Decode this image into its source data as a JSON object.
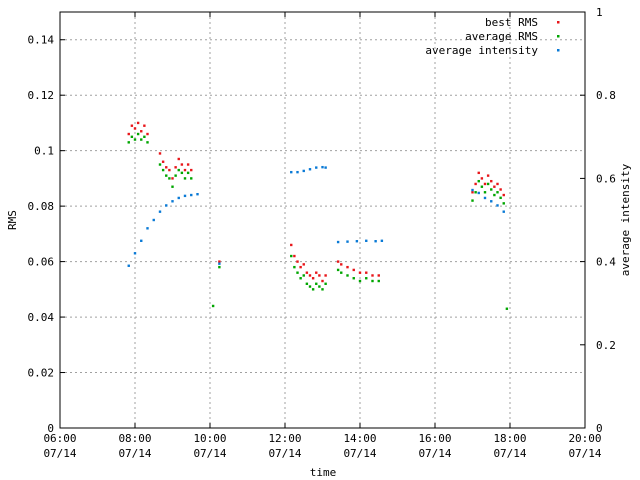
{
  "chart_data": {
    "type": "scatter",
    "xlabel": "time",
    "ylabel": "RMS",
    "y2label": "average intensity",
    "xlim": [
      "06:00",
      "20:00"
    ],
    "ylim": [
      0,
      0.15
    ],
    "y2lim": [
      0,
      1
    ],
    "grid": true,
    "legend_position": "top-right",
    "x_ticks": [
      {
        "time": "06:00",
        "date": "07/14"
      },
      {
        "time": "08:00",
        "date": "07/14"
      },
      {
        "time": "10:00",
        "date": "07/14"
      },
      {
        "time": "12:00",
        "date": "07/14"
      },
      {
        "time": "14:00",
        "date": "07/14"
      },
      {
        "time": "16:00",
        "date": "07/14"
      },
      {
        "time": "18:00",
        "date": "07/14"
      },
      {
        "time": "20:00",
        "date": "07/14"
      }
    ],
    "y_ticks": [
      "0",
      "0.02",
      "0.04",
      "0.06",
      "0.08",
      "0.1",
      "0.12",
      "0.14"
    ],
    "y2_ticks": [
      "0",
      "0.2",
      "0.4",
      "0.6",
      "0.8",
      "1"
    ],
    "series": [
      {
        "name": "best RMS",
        "color": "#e8161a",
        "axis": "y",
        "points": [
          [
            "07:50",
            0.106
          ],
          [
            "07:55",
            0.109
          ],
          [
            "08:00",
            0.108
          ],
          [
            "08:05",
            0.11
          ],
          [
            "08:10",
            0.107
          ],
          [
            "08:15",
            0.109
          ],
          [
            "08:20",
            0.106
          ],
          [
            "08:40",
            0.099
          ],
          [
            "08:45",
            0.096
          ],
          [
            "08:50",
            0.094
          ],
          [
            "08:55",
            0.093
          ],
          [
            "09:00",
            0.09
          ],
          [
            "09:05",
            0.094
          ],
          [
            "09:10",
            0.097
          ],
          [
            "09:15",
            0.095
          ],
          [
            "09:20",
            0.093
          ],
          [
            "09:25",
            0.095
          ],
          [
            "09:30",
            0.093
          ],
          [
            "10:15",
            0.06
          ],
          [
            "12:10",
            0.066
          ],
          [
            "12:15",
            0.062
          ],
          [
            "12:20",
            0.06
          ],
          [
            "12:25",
            0.058
          ],
          [
            "12:30",
            0.059
          ],
          [
            "12:35",
            0.056
          ],
          [
            "12:40",
            0.055
          ],
          [
            "12:45",
            0.054
          ],
          [
            "12:50",
            0.056
          ],
          [
            "12:55",
            0.055
          ],
          [
            "13:00",
            0.053
          ],
          [
            "13:05",
            0.055
          ],
          [
            "13:25",
            0.06
          ],
          [
            "13:30",
            0.059
          ],
          [
            "13:40",
            0.058
          ],
          [
            "13:50",
            0.057
          ],
          [
            "14:00",
            0.056
          ],
          [
            "14:10",
            0.056
          ],
          [
            "14:20",
            0.055
          ],
          [
            "14:30",
            0.055
          ],
          [
            "17:00",
            0.085
          ],
          [
            "17:05",
            0.088
          ],
          [
            "17:10",
            0.092
          ],
          [
            "17:15",
            0.09
          ],
          [
            "17:20",
            0.088
          ],
          [
            "17:25",
            0.091
          ],
          [
            "17:30",
            0.089
          ],
          [
            "17:35",
            0.087
          ],
          [
            "17:40",
            0.088
          ],
          [
            "17:45",
            0.086
          ],
          [
            "17:50",
            0.084
          ]
        ]
      },
      {
        "name": "average RMS",
        "color": "#00a600",
        "axis": "y",
        "points": [
          [
            "07:50",
            0.103
          ],
          [
            "07:55",
            0.105
          ],
          [
            "08:00",
            0.104
          ],
          [
            "08:05",
            0.106
          ],
          [
            "08:10",
            0.104
          ],
          [
            "08:15",
            0.105
          ],
          [
            "08:20",
            0.103
          ],
          [
            "08:40",
            0.095
          ],
          [
            "08:45",
            0.093
          ],
          [
            "08:50",
            0.091
          ],
          [
            "08:55",
            0.09
          ],
          [
            "09:00",
            0.087
          ],
          [
            "09:05",
            0.091
          ],
          [
            "09:10",
            0.093
          ],
          [
            "09:15",
            0.092
          ],
          [
            "09:20",
            0.09
          ],
          [
            "09:25",
            0.092
          ],
          [
            "09:30",
            0.09
          ],
          [
            "10:15",
            0.058
          ],
          [
            "10:05",
            0.044
          ],
          [
            "12:10",
            0.062
          ],
          [
            "12:15",
            0.058
          ],
          [
            "12:20",
            0.056
          ],
          [
            "12:25",
            0.054
          ],
          [
            "12:30",
            0.055
          ],
          [
            "12:35",
            0.052
          ],
          [
            "12:40",
            0.051
          ],
          [
            "12:45",
            0.05
          ],
          [
            "12:50",
            0.052
          ],
          [
            "12:55",
            0.051
          ],
          [
            "13:00",
            0.05
          ],
          [
            "13:05",
            0.052
          ],
          [
            "13:25",
            0.057
          ],
          [
            "13:30",
            0.056
          ],
          [
            "13:40",
            0.055
          ],
          [
            "13:50",
            0.054
          ],
          [
            "14:00",
            0.053
          ],
          [
            "14:10",
            0.054
          ],
          [
            "14:20",
            0.053
          ],
          [
            "14:30",
            0.053
          ],
          [
            "17:00",
            0.082
          ],
          [
            "17:05",
            0.085
          ],
          [
            "17:10",
            0.089
          ],
          [
            "17:15",
            0.087
          ],
          [
            "17:20",
            0.085
          ],
          [
            "17:25",
            0.088
          ],
          [
            "17:30",
            0.086
          ],
          [
            "17:35",
            0.084
          ],
          [
            "17:40",
            0.085
          ],
          [
            "17:45",
            0.083
          ],
          [
            "17:50",
            0.081
          ],
          [
            "17:55",
            0.043
          ]
        ]
      },
      {
        "name": "average intensity",
        "color": "#0a7ad6",
        "axis": "y2",
        "points": [
          [
            "07:50",
            0.39
          ],
          [
            "08:00",
            0.42
          ],
          [
            "08:10",
            0.45
          ],
          [
            "08:20",
            0.48
          ],
          [
            "08:30",
            0.5
          ],
          [
            "08:40",
            0.52
          ],
          [
            "08:50",
            0.535
          ],
          [
            "09:00",
            0.545
          ],
          [
            "09:10",
            0.553
          ],
          [
            "09:20",
            0.558
          ],
          [
            "09:30",
            0.56
          ],
          [
            "09:40",
            0.562
          ],
          [
            "10:15",
            0.395
          ],
          [
            "12:10",
            0.615
          ],
          [
            "12:20",
            0.615
          ],
          [
            "12:30",
            0.618
          ],
          [
            "12:40",
            0.622
          ],
          [
            "12:50",
            0.626
          ],
          [
            "13:00",
            0.627
          ],
          [
            "13:05",
            0.626
          ],
          [
            "13:25",
            0.447
          ],
          [
            "13:40",
            0.448
          ],
          [
            "13:55",
            0.449
          ],
          [
            "14:10",
            0.45
          ],
          [
            "14:25",
            0.449
          ],
          [
            "14:35",
            0.45
          ],
          [
            "17:00",
            0.572
          ],
          [
            "17:10",
            0.565
          ],
          [
            "17:20",
            0.553
          ],
          [
            "17:30",
            0.545
          ],
          [
            "17:40",
            0.535
          ],
          [
            "17:50",
            0.52
          ]
        ]
      }
    ]
  }
}
